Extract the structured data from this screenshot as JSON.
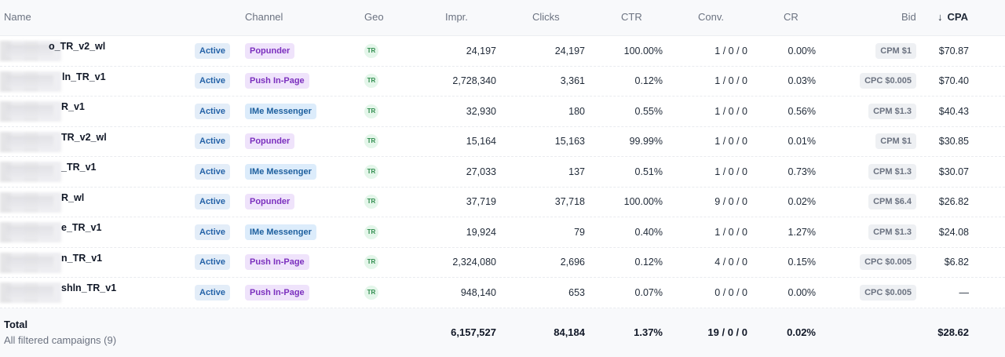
{
  "headers": {
    "name": "Name",
    "channel": "Channel",
    "geo": "Geo",
    "impr": "Impr.",
    "clicks": "Clicks",
    "ctr": "CTR",
    "conv": "Conv.",
    "cr": "CR",
    "bid": "Bid",
    "cpa": "CPA",
    "cpa_sort_icon": "↓"
  },
  "rows": [
    {
      "name": "o_TR_v2_wl",
      "status": "Active",
      "channel": "Popunder",
      "channel_type": "popunder",
      "geo": "TR",
      "impr": "24,197",
      "clicks": "24,197",
      "ctr": "100.00%",
      "conv": "1 / 0 / 0",
      "cr": "0.00%",
      "bid": "CPM $1",
      "cpa": "$70.87"
    },
    {
      "name": "ln_TR_v1",
      "status": "Active",
      "channel": "Push In-Page",
      "channel_type": "push",
      "geo": "TR",
      "impr": "2,728,340",
      "clicks": "3,361",
      "ctr": "0.12%",
      "conv": "1 / 0 / 0",
      "cr": "0.03%",
      "bid": "CPC $0.005",
      "cpa": "$70.40"
    },
    {
      "name": "R_v1",
      "status": "Active",
      "channel": "IMe Messenger",
      "channel_type": "ime",
      "geo": "TR",
      "impr": "32,930",
      "clicks": "180",
      "ctr": "0.55%",
      "conv": "1 / 0 / 0",
      "cr": "0.56%",
      "bid": "CPM $1.3",
      "cpa": "$40.43"
    },
    {
      "name": "TR_v2_wl",
      "status": "Active",
      "channel": "Popunder",
      "channel_type": "popunder",
      "geo": "TR",
      "impr": "15,164",
      "clicks": "15,163",
      "ctr": "99.99%",
      "conv": "1 / 0 / 0",
      "cr": "0.01%",
      "bid": "CPM $1",
      "cpa": "$30.85"
    },
    {
      "name": "_TR_v1",
      "status": "Active",
      "channel": "IMe Messenger",
      "channel_type": "ime",
      "geo": "TR",
      "impr": "27,033",
      "clicks": "137",
      "ctr": "0.51%",
      "conv": "1 / 0 / 0",
      "cr": "0.73%",
      "bid": "CPM $1.3",
      "cpa": "$30.07"
    },
    {
      "name": "R_wl",
      "status": "Active",
      "channel": "Popunder",
      "channel_type": "popunder",
      "geo": "TR",
      "impr": "37,719",
      "clicks": "37,718",
      "ctr": "100.00%",
      "conv": "9 / 0 / 0",
      "cr": "0.02%",
      "bid": "CPM $6.4",
      "cpa": "$26.82"
    },
    {
      "name": "e_TR_v1",
      "status": "Active",
      "channel": "IMe Messenger",
      "channel_type": "ime",
      "geo": "TR",
      "impr": "19,924",
      "clicks": "79",
      "ctr": "0.40%",
      "conv": "1 / 0 / 0",
      "cr": "1.27%",
      "bid": "CPM $1.3",
      "cpa": "$24.08"
    },
    {
      "name": "n_TR_v1",
      "status": "Active",
      "channel": "Push In-Page",
      "channel_type": "push",
      "geo": "TR",
      "impr": "2,324,080",
      "clicks": "2,696",
      "ctr": "0.12%",
      "conv": "4 / 0 / 0",
      "cr": "0.15%",
      "bid": "CPC $0.005",
      "cpa": "$6.82"
    },
    {
      "name": "shln_TR_v1",
      "status": "Active",
      "channel": "Push In-Page",
      "channel_type": "push",
      "geo": "TR",
      "impr": "948,140",
      "clicks": "653",
      "ctr": "0.07%",
      "conv": "0 / 0 / 0",
      "cr": "0.00%",
      "bid": "CPC $0.005",
      "cpa": "—"
    }
  ],
  "footer": {
    "title": "Total",
    "subtitle": "All filtered campaigns (9)",
    "impr": "6,157,527",
    "clicks": "84,184",
    "ctr": "1.37%",
    "conv": "19 / 0 / 0",
    "cr": "0.02%",
    "cpa": "$28.62"
  }
}
